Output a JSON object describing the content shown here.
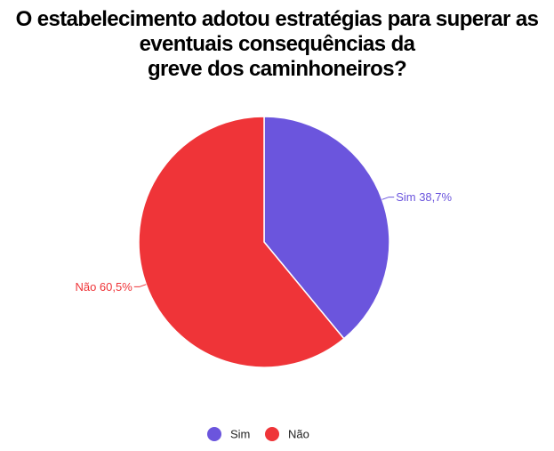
{
  "chart_data": {
    "type": "pie",
    "title_lines": [
      "O estabelecimento adotou estratégias para superar as",
      "eventuais consequências da",
      "greve dos caminhoneiros?"
    ],
    "categories": [
      "Sim",
      "Não"
    ],
    "values": [
      38.7,
      60.5
    ],
    "slice_labels": [
      "Sim 38,7%",
      "Não 60,5%"
    ],
    "colors": [
      "#6b55dd",
      "#ef3438"
    ],
    "legend": {
      "placement": "bottom",
      "items": [
        "Sim",
        "Não"
      ]
    }
  }
}
